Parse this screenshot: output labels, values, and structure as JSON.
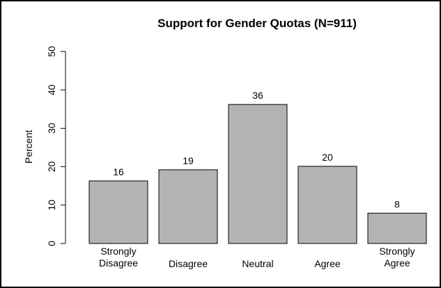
{
  "chart_data": {
    "type": "bar",
    "title": "Support for Gender Quotas (N=911)",
    "ylabel": "Percent",
    "xlabel": "",
    "ylim": [
      0,
      50
    ],
    "yticks": [
      0,
      10,
      20,
      30,
      40,
      50
    ],
    "categories": [
      [
        "Strongly",
        "Disagree"
      ],
      [
        "Disagree"
      ],
      [
        "Neutral"
      ],
      [
        "Agree"
      ],
      [
        "Strongly",
        "Agree"
      ]
    ],
    "values": [
      16.3,
      19.2,
      36.2,
      20.1,
      7.9
    ],
    "data_labels": [
      "16",
      "19",
      "36",
      "20",
      "8"
    ],
    "bar_color": "#b3b3b3",
    "grid": false,
    "legend": "none"
  }
}
